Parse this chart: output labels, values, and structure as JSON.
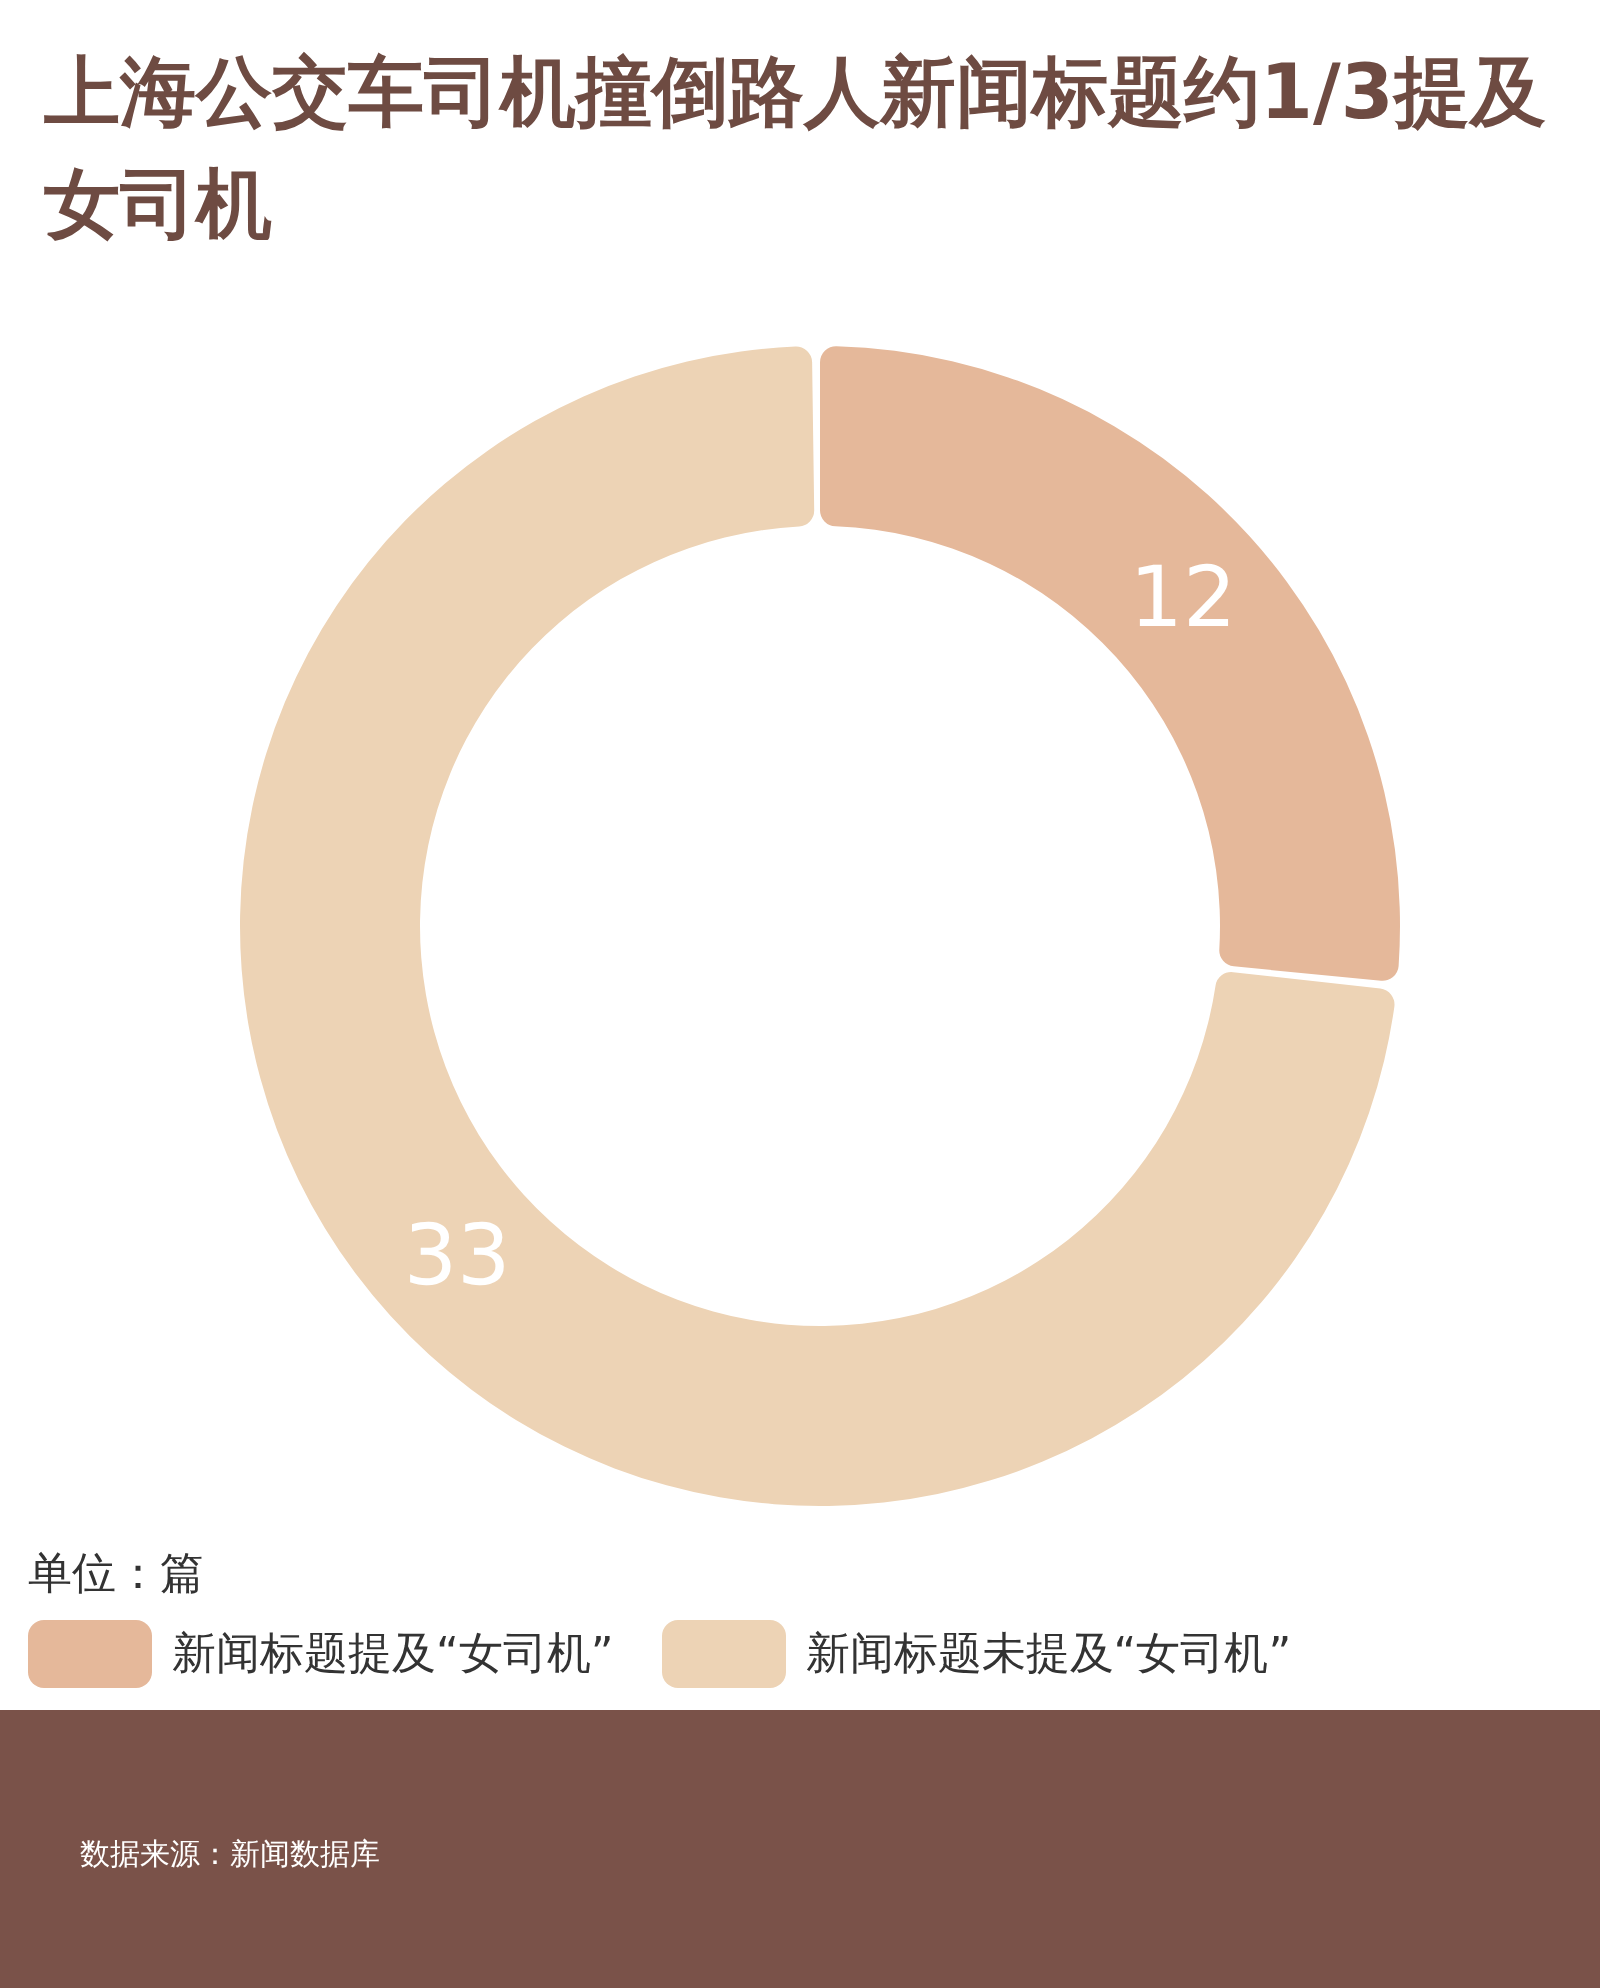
{
  "chart_data": {
    "type": "donut",
    "title": "上海公交车司机撞倒路人新闻标题约1/3提及女司机",
    "categories": [
      "新闻标题提及“女司机”",
      "新闻标题未提及“女司机”"
    ],
    "values": [
      12,
      33
    ],
    "colors": [
      "#e5b89a",
      "#edd3b5"
    ],
    "data_labels": true,
    "legend": "bottom",
    "annotations": [
      "单位：篇",
      "数据来源：新闻数据库"
    ]
  }
}
